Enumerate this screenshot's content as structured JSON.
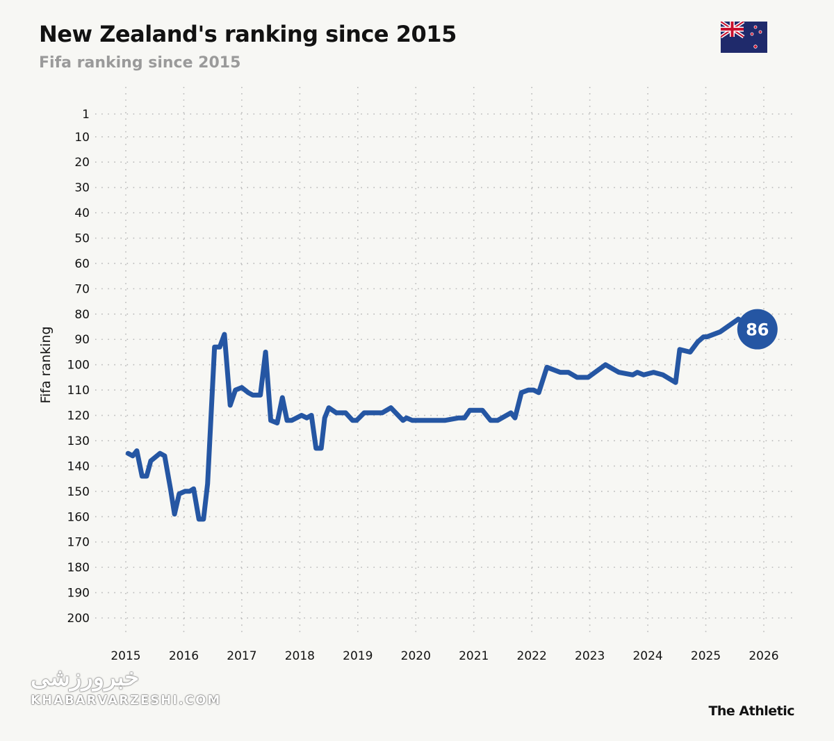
{
  "header": {
    "title": "New Zealand's ranking since 2015",
    "subtitle": "Fifa ranking since 2015",
    "flag_icon": "new-zealand-flag"
  },
  "footer": {
    "brand": "The Athletic",
    "watermark_fa": "خبرورزشی",
    "watermark_en": "KHABARVARZESHI.COM"
  },
  "chart_data": {
    "type": "line",
    "title": "New Zealand's ranking since 2015",
    "subtitle": "Fifa ranking since 2015",
    "xlabel": "",
    "ylabel": "Fifa ranking",
    "xlim": [
      2015,
      2026
    ],
    "ylim": [
      1,
      200
    ],
    "y_inverted": true,
    "grid": "dotted",
    "x_ticks": [
      "2015",
      "2016",
      "2017",
      "2018",
      "2019",
      "2020",
      "2021",
      "2022",
      "2023",
      "2024",
      "2025",
      "2026"
    ],
    "y_ticks": [
      1,
      10,
      20,
      30,
      40,
      50,
      60,
      70,
      80,
      90,
      100,
      110,
      120,
      130,
      140,
      150,
      160,
      170,
      180,
      190,
      200
    ],
    "line_color": "#2556a3",
    "end_label": "86",
    "series": [
      {
        "points": [
          [
            2015.04,
            135
          ],
          [
            2015.12,
            136
          ],
          [
            2015.19,
            134
          ],
          [
            2015.28,
            144
          ],
          [
            2015.36,
            144
          ],
          [
            2015.43,
            138
          ],
          [
            2015.59,
            135
          ],
          [
            2015.67,
            136
          ],
          [
            2015.77,
            149
          ],
          [
            2015.84,
            159
          ],
          [
            2015.92,
            151
          ],
          [
            2016.02,
            150
          ],
          [
            2016.1,
            150
          ],
          [
            2016.17,
            149
          ],
          [
            2016.26,
            161
          ],
          [
            2016.34,
            161
          ],
          [
            2016.41,
            147
          ],
          [
            2016.53,
            93
          ],
          [
            2016.62,
            93
          ],
          [
            2016.7,
            88
          ],
          [
            2016.8,
            116
          ],
          [
            2016.89,
            110
          ],
          [
            2017.0,
            109
          ],
          [
            2017.11,
            111
          ],
          [
            2017.19,
            112
          ],
          [
            2017.32,
            112
          ],
          [
            2017.41,
            95
          ],
          [
            2017.5,
            122
          ],
          [
            2017.61,
            123
          ],
          [
            2017.7,
            113
          ],
          [
            2017.78,
            122
          ],
          [
            2017.86,
            122
          ],
          [
            2018.03,
            120
          ],
          [
            2018.12,
            121
          ],
          [
            2018.2,
            120
          ],
          [
            2018.28,
            133
          ],
          [
            2018.37,
            133
          ],
          [
            2018.43,
            121
          ],
          [
            2018.5,
            117
          ],
          [
            2018.63,
            119
          ],
          [
            2018.79,
            119
          ],
          [
            2018.91,
            122
          ],
          [
            2018.98,
            122
          ],
          [
            2019.11,
            119
          ],
          [
            2019.42,
            119
          ],
          [
            2019.57,
            117
          ],
          [
            2019.78,
            122
          ],
          [
            2019.84,
            121
          ],
          [
            2019.94,
            122
          ],
          [
            2020.5,
            122
          ],
          [
            2020.74,
            121
          ],
          [
            2020.84,
            121
          ],
          [
            2020.93,
            118
          ],
          [
            2021.15,
            118
          ],
          [
            2021.29,
            122
          ],
          [
            2021.41,
            122
          ],
          [
            2021.64,
            119
          ],
          [
            2021.71,
            121
          ],
          [
            2021.82,
            111
          ],
          [
            2021.94,
            110
          ],
          [
            2022.03,
            110
          ],
          [
            2022.12,
            111
          ],
          [
            2022.26,
            101
          ],
          [
            2022.49,
            103
          ],
          [
            2022.63,
            103
          ],
          [
            2022.78,
            105
          ],
          [
            2022.97,
            105
          ],
          [
            2023.27,
            100
          ],
          [
            2023.5,
            103
          ],
          [
            2023.74,
            104
          ],
          [
            2023.82,
            103
          ],
          [
            2023.93,
            104
          ],
          [
            2024.1,
            103
          ],
          [
            2024.26,
            104
          ],
          [
            2024.48,
            107
          ],
          [
            2024.55,
            94
          ],
          [
            2024.73,
            95
          ],
          [
            2024.86,
            91
          ],
          [
            2024.96,
            89
          ],
          [
            2025.02,
            89
          ],
          [
            2025.25,
            87
          ],
          [
            2025.56,
            82
          ],
          [
            2025.89,
            86
          ]
        ]
      }
    ]
  }
}
